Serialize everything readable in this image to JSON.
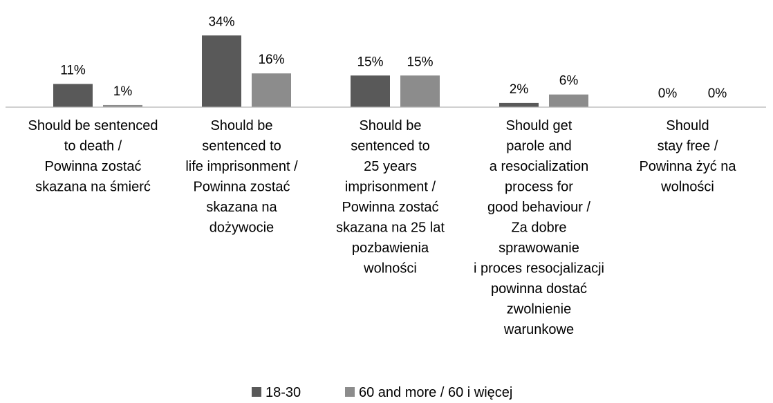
{
  "chart_data": {
    "type": "bar",
    "title": "",
    "xlabel": "",
    "ylabel": "",
    "ylim": [
      0,
      34
    ],
    "grid": false,
    "legend_position": "bottom-center",
    "categories": [
      [
        "Should be sentenced",
        "to death /",
        "Powinna zostać",
        "skazana na śmierć"
      ],
      [
        "Should be",
        "sentenced to",
        "life imprisonment /",
        "Powinna zostać",
        "skazana na",
        "dożywocie"
      ],
      [
        "Should be",
        "sentenced to",
        "25 years",
        "imprisonment /",
        "Powinna zostać",
        "skazana na 25 lat",
        "pozbawienia",
        "wolności"
      ],
      [
        "Should get",
        "parole and",
        "a resocialization",
        "process for",
        "good behaviour /",
        "Za dobre",
        "sprawowanie",
        "i proces resocjalizacji",
        "powinna dostać",
        "zwolnienie",
        "warunkowe"
      ],
      [
        "Should",
        "stay free /",
        "Powinna żyć na",
        "wolności"
      ]
    ],
    "series": [
      {
        "name": "18-30",
        "color": "#595959",
        "values": [
          11,
          34,
          15,
          2,
          0
        ],
        "labels": [
          "11%",
          "34%",
          "15%",
          "2%",
          "0%"
        ]
      },
      {
        "name": "60 and more / 60 i więcej",
        "color": "#8c8c8c",
        "values": [
          1,
          16,
          15,
          6,
          0
        ],
        "labels": [
          "1%",
          "16%",
          "15%",
          "6%",
          "0%"
        ]
      }
    ]
  }
}
